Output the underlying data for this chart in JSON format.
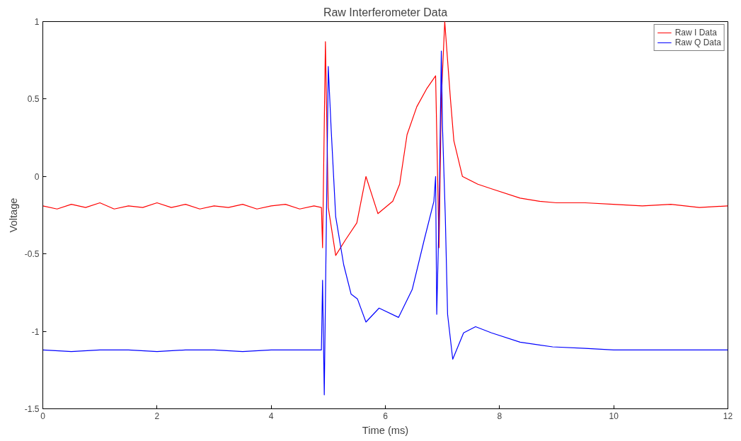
{
  "chart_data": {
    "type": "line",
    "title": "Raw Interferometer Data",
    "xlabel": "Time (ms)",
    "ylabel": "Voltage",
    "xlim": [
      0,
      12
    ],
    "ylim": [
      -1.5,
      1
    ],
    "xticks": [
      0,
      2,
      4,
      6,
      8,
      10,
      12
    ],
    "yticks": [
      -1.5,
      -1,
      -0.5,
      0,
      0.5,
      1
    ],
    "grid": false,
    "legend": "top right",
    "line_style": "solid",
    "marker": "none",
    "series": [
      {
        "name": "Raw I Data",
        "color": "#ff0000",
        "x": [
          0,
          0.25,
          0.5,
          0.75,
          1,
          1.25,
          1.5,
          1.75,
          2,
          2.25,
          2.5,
          2.75,
          3,
          3.25,
          3.5,
          3.75,
          4,
          4.25,
          4.5,
          4.75,
          4.88,
          4.9,
          4.95,
          5.0,
          5.13,
          5.3,
          5.5,
          5.66,
          5.87,
          6.13,
          6.25,
          6.38,
          6.55,
          6.73,
          6.88,
          6.94,
          6.98,
          7.04,
          7.14,
          7.2,
          7.35,
          7.62,
          7.86,
          8.36,
          8.7,
          9.0,
          9.5,
          9.99,
          10.5,
          11,
          11.5,
          12
        ],
        "values": [
          -0.19,
          -0.21,
          -0.18,
          -0.2,
          -0.17,
          -0.21,
          -0.19,
          -0.2,
          -0.17,
          -0.2,
          -0.18,
          -0.21,
          -0.19,
          -0.2,
          -0.18,
          -0.21,
          -0.19,
          -0.18,
          -0.21,
          -0.19,
          -0.2,
          -0.46,
          0.87,
          -0.2,
          -0.51,
          -0.41,
          -0.3,
          0.0,
          -0.24,
          -0.16,
          -0.05,
          0.27,
          0.45,
          0.57,
          0.65,
          -0.46,
          0.5,
          1.0,
          0.5,
          0.23,
          0.0,
          -0.05,
          -0.08,
          -0.14,
          -0.16,
          -0.17,
          -0.17,
          -0.18,
          -0.19,
          -0.18,
          -0.2,
          -0.19
        ]
      },
      {
        "name": "Raw Q Data",
        "color": "#0000ff",
        "x": [
          0,
          0.5,
          1,
          1.5,
          2,
          2.5,
          3,
          3.5,
          4,
          4.5,
          4.88,
          4.9,
          4.93,
          5.0,
          5.05,
          5.13,
          5.27,
          5.4,
          5.51,
          5.66,
          5.89,
          6.23,
          6.47,
          6.68,
          6.85,
          6.88,
          6.9,
          6.94,
          6.98,
          7.0,
          7.05,
          7.09,
          7.18,
          7.37,
          7.58,
          7.86,
          8.36,
          8.93,
          9.5,
          10,
          11,
          12
        ],
        "values": [
          -1.12,
          -1.13,
          -1.12,
          -1.12,
          -1.13,
          -1.12,
          -1.12,
          -1.13,
          -1.12,
          -1.12,
          -1.12,
          -0.67,
          -1.41,
          0.71,
          0.31,
          -0.26,
          -0.57,
          -0.76,
          -0.79,
          -0.94,
          -0.85,
          -0.91,
          -0.73,
          -0.41,
          -0.16,
          0.0,
          -0.89,
          -0.26,
          0.81,
          0.33,
          -0.26,
          -0.89,
          -1.18,
          -1.01,
          -0.97,
          -1.01,
          -1.07,
          -1.1,
          -1.11,
          -1.12,
          -1.12,
          -1.12
        ]
      }
    ]
  }
}
